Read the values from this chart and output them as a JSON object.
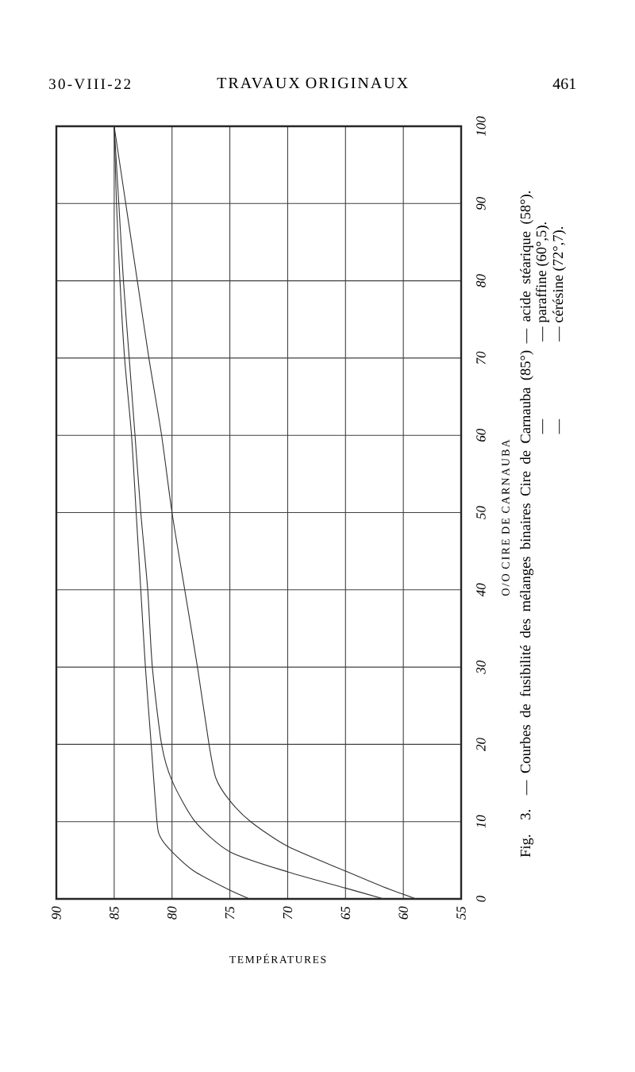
{
  "chart_data": {
    "type": "line",
    "title": "Fig. 3. — Courbes de fusibilité des mélanges binaires Cire de Carnauba (85°) — acide stéarique (58°).",
    "xlabel": "TEMPÉRATURES",
    "ylabel": "O/O CIRE DE CARNAUBA",
    "annotations": [
      "—",
      "— paraffine (60°,5).",
      "—",
      "— cérésine (72°,7).",
      "30-VIII-22",
      "TRAVAUX ORIGINAUX",
      "461"
    ],
    "xlim": [
      90,
      55
    ],
    "xticks": [
      90,
      85,
      80,
      75,
      70,
      65,
      60,
      55
    ],
    "ylim": [
      0,
      100
    ],
    "yticks": [
      0,
      10,
      20,
      30,
      40,
      50,
      60,
      70,
      80,
      90,
      100
    ],
    "grid": true,
    "series": [
      {
        "color": "#333333",
        "x": [
          85,
          84.0,
          83.0,
          82.0,
          80.9,
          80.0,
          78.9,
          77.8,
          76.8,
          76.2,
          75.0,
          73.2,
          70.0,
          65.0,
          61.8,
          58.9
        ],
        "values": [
          100,
          90,
          80,
          70,
          60,
          50,
          40,
          30,
          20,
          15.6,
          12.7,
          10,
          6.8,
          3.6,
          1.6,
          0
        ]
      },
      {
        "color": "#333333",
        "x": [
          85,
          84.6,
          84.2,
          83.7,
          83.2,
          82.7,
          82.1,
          81.7,
          80.9,
          80.0,
          78.0,
          75.0,
          70.0,
          65.0,
          61.7
        ],
        "values": [
          100,
          90,
          80,
          70,
          60,
          50,
          40,
          30,
          20,
          15.3,
          10,
          6.1,
          3.5,
          1.4,
          0
        ]
      },
      {
        "color": "#333333",
        "x": [
          85,
          84.8,
          84.5,
          84.1,
          83.5,
          83.1,
          82.7,
          82.3,
          81.8,
          81.3,
          81.0,
          80.0,
          78.1,
          75.1,
          73.3
        ],
        "values": [
          100,
          90,
          80,
          70,
          60,
          50,
          40,
          30,
          20,
          10,
          8,
          6.1,
          3.6,
          1.2,
          0
        ]
      }
    ]
  }
}
